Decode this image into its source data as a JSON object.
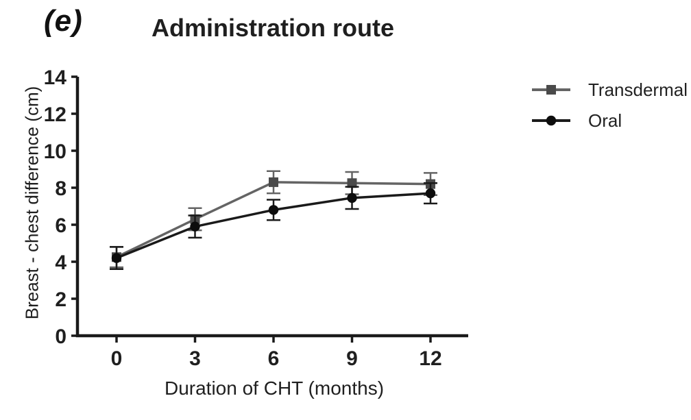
{
  "chart_data": {
    "type": "line",
    "panel_label": "(e)",
    "title": "Administration route",
    "xlabel": "Duration of CHT (months)",
    "ylabel": "Breast - chest difference (cm)",
    "x": [
      0,
      3,
      6,
      9,
      12
    ],
    "xticks": [
      0,
      3,
      6,
      9,
      12
    ],
    "yticks": [
      0,
      2,
      4,
      6,
      8,
      10,
      12,
      14
    ],
    "xlim": [
      -1.5,
      13.4
    ],
    "ylim": [
      0,
      14
    ],
    "grid": false,
    "legend_position": "right",
    "axis_color": "#1a1a1a",
    "series": [
      {
        "name": "Transdermal",
        "marker": "square",
        "color": "#646464",
        "marker_color": "#4a4a4a",
        "values": [
          4.25,
          6.3,
          8.3,
          8.25,
          8.2
        ],
        "errors": [
          0.55,
          0.6,
          0.6,
          0.6,
          0.6
        ]
      },
      {
        "name": "Oral",
        "marker": "circle",
        "color": "#1a1a1a",
        "marker_color": "#0d0d0d",
        "values": [
          4.2,
          5.9,
          6.8,
          7.45,
          7.7
        ],
        "errors": [
          0.6,
          0.6,
          0.55,
          0.6,
          0.55
        ]
      }
    ]
  }
}
